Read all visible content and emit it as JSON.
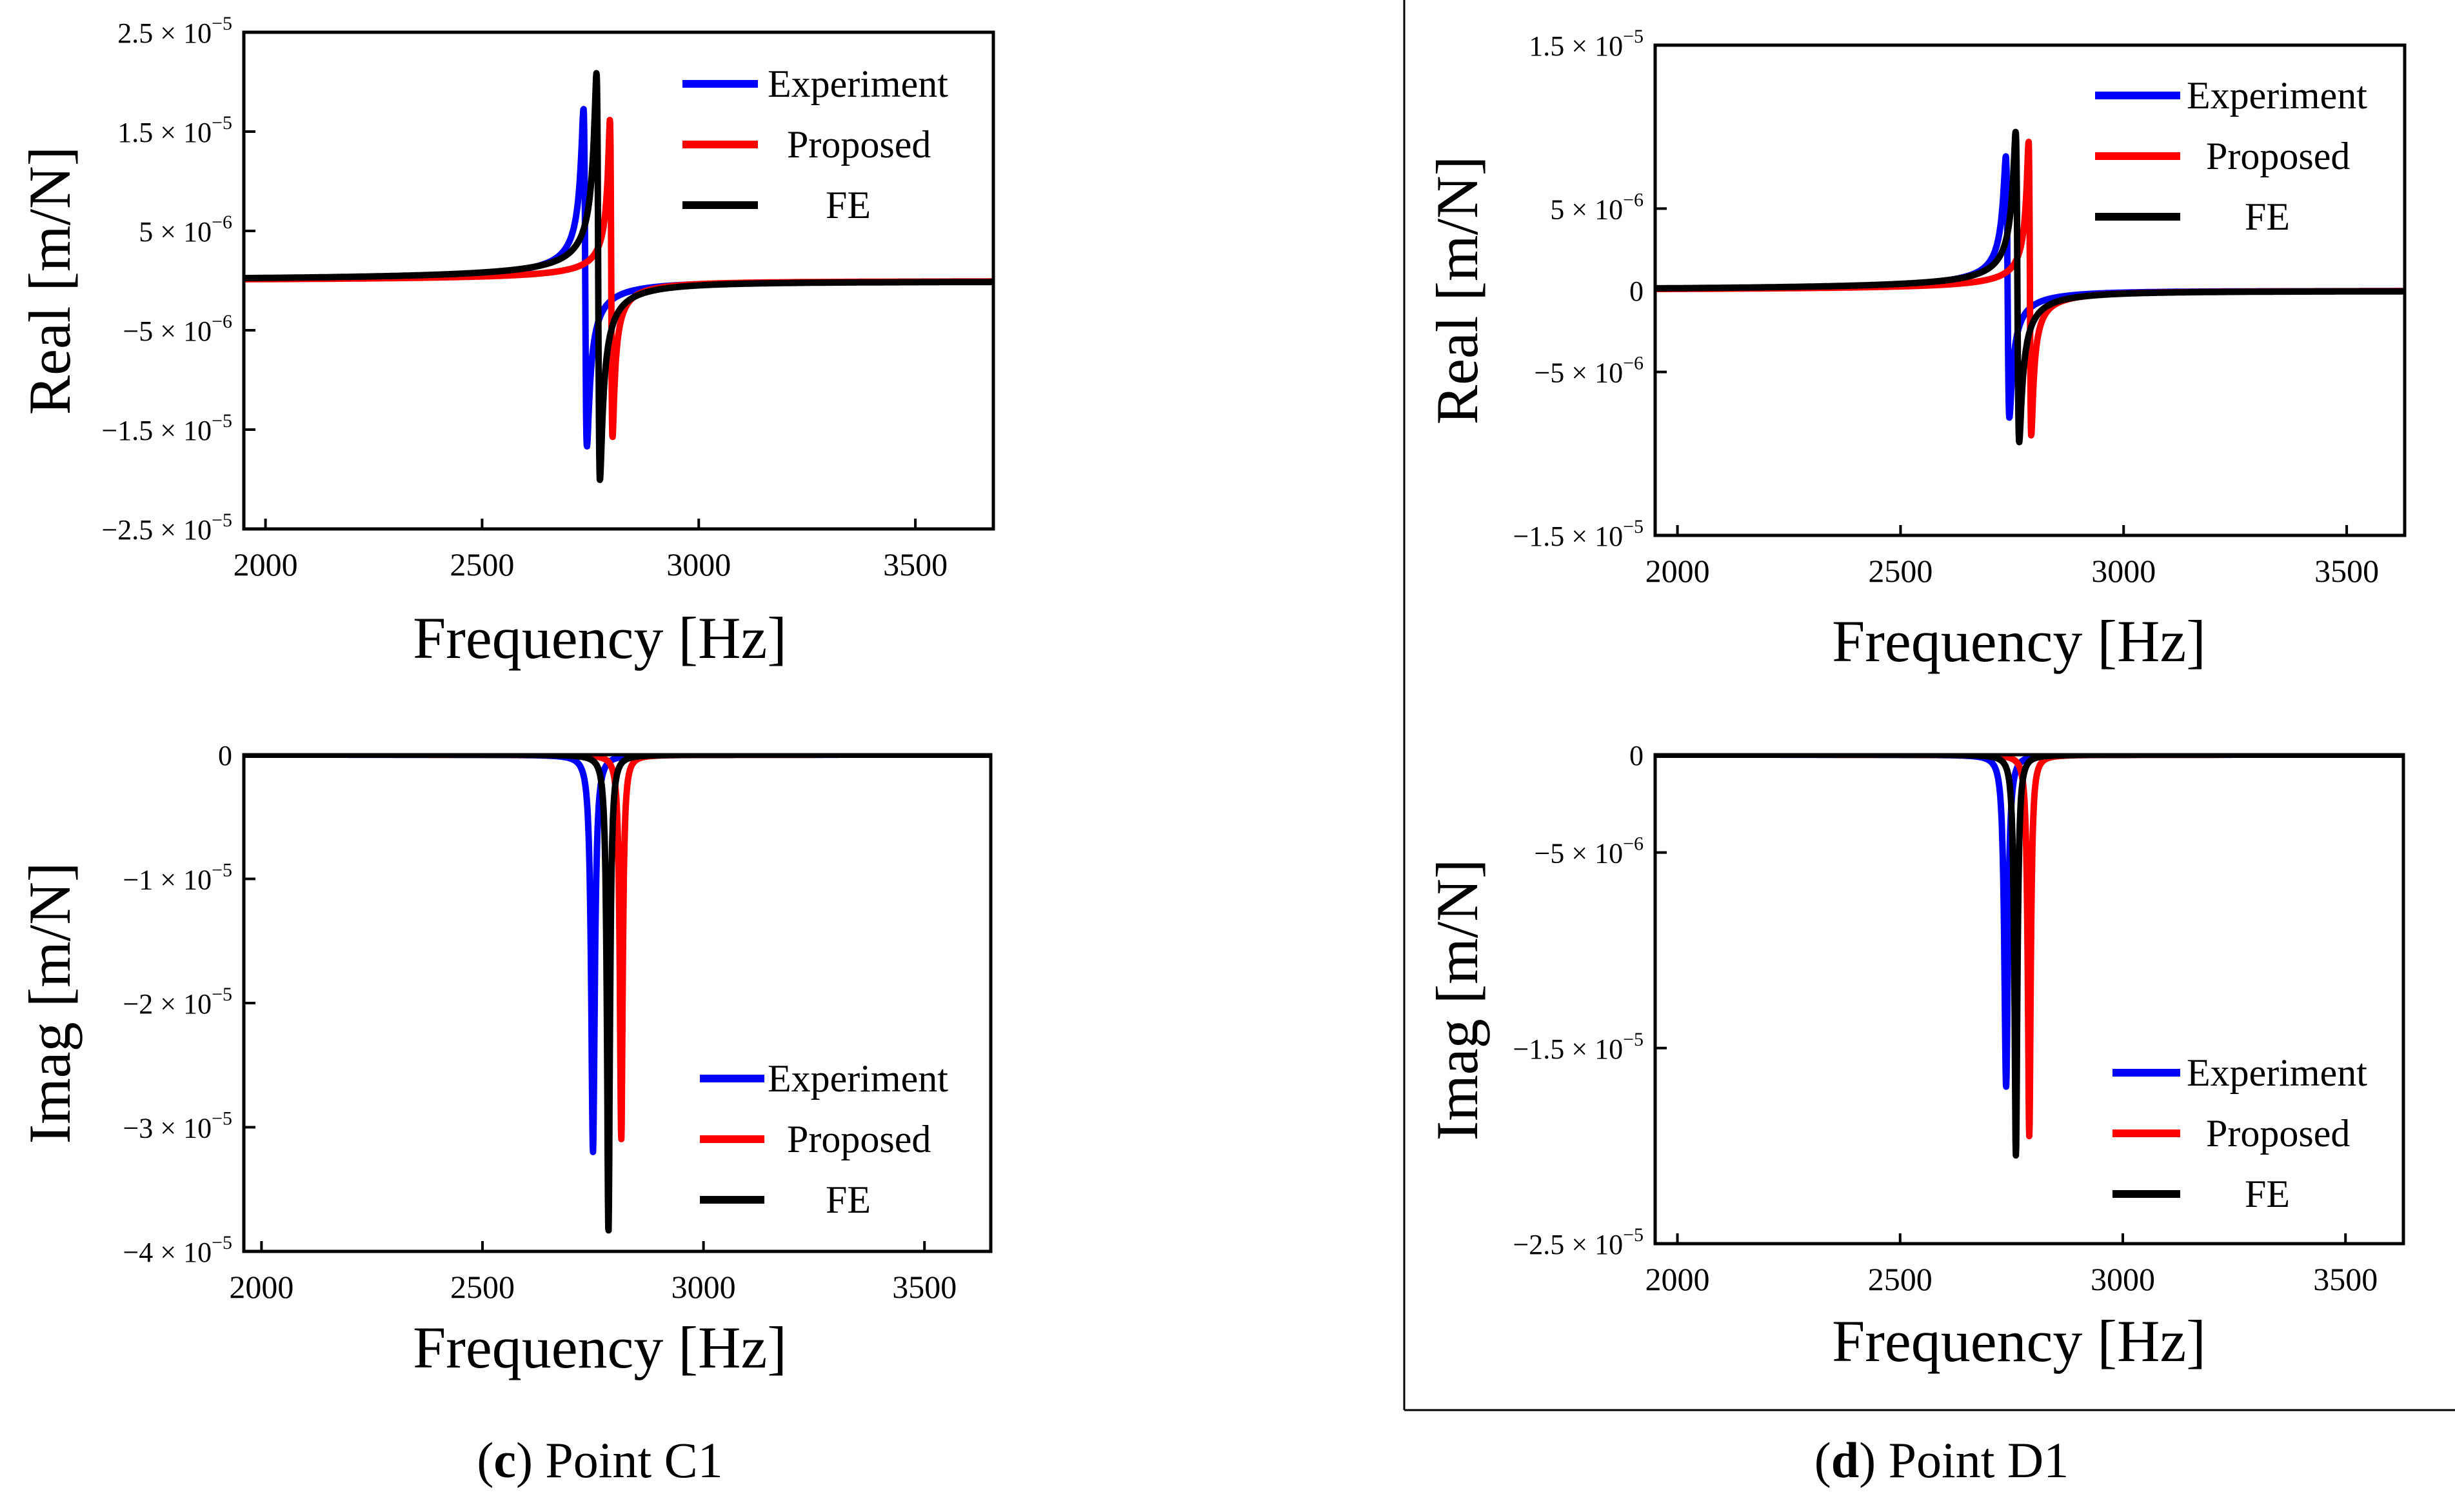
{
  "figure_captions": [
    {
      "letter": "c",
      "rest": ") Point C1",
      "open": "("
    },
    {
      "letter": "d",
      "rest": ") Point D1",
      "open": "("
    }
  ],
  "chart_data": [
    {
      "id": "c-real",
      "type": "line",
      "ylabel": "Real [m/N]",
      "xlabel": "Frequency [Hz]",
      "xlim": [
        1950,
        3680
      ],
      "ylim": [
        -2.5e-05,
        2.5e-05
      ],
      "xticks": [
        2000,
        2500,
        3000,
        3500
      ],
      "yticks": [
        {
          "value": 2.5e-05,
          "label": "2.5 × 10",
          "exp": "−5"
        },
        {
          "value": 1.5e-05,
          "label": "1.5 × 10",
          "exp": "−5"
        },
        {
          "value": 5e-06,
          "label": "5 × 10",
          "exp": "−6"
        },
        {
          "value": -5e-06,
          "label": "−5 × 10",
          "exp": "−6"
        },
        {
          "value": -1.5e-05,
          "label": "−1.5 × 10",
          "exp": "−5"
        },
        {
          "value": -2.5e-05,
          "label": "−2.5 × 10",
          "exp": "−5"
        }
      ],
      "legend": [
        "Experiment",
        "Proposed",
        "FE"
      ],
      "series": [
        {
          "name": "Experiment",
          "color": "#0000ff",
          "f0": 2738,
          "peak": 1.7e-05,
          "halfwidth": 4,
          "offset": 3e-07
        },
        {
          "name": "Proposed",
          "color": "#ff0000",
          "f0": 2798,
          "peak": 1.6e-05,
          "halfwidth": 3,
          "offset": 2e-07
        },
        {
          "name": "FE",
          "color": "#000000",
          "f0": 2768,
          "peak": 2.05e-05,
          "halfwidth": 4,
          "offset": 4e-07
        }
      ]
    },
    {
      "id": "d-real",
      "type": "line",
      "ylabel": "Real [m/N]",
      "xlabel": "Frequency [Hz]",
      "xlim": [
        1950,
        3630
      ],
      "ylim": [
        -1.5e-05,
        1.5e-05
      ],
      "xticks": [
        2000,
        2500,
        3000,
        3500
      ],
      "yticks": [
        {
          "value": 1.5e-05,
          "label": "1.5 × 10",
          "exp": "−5"
        },
        {
          "value": 5e-06,
          "label": "5 × 10",
          "exp": "−6"
        },
        {
          "value": 0,
          "label": "0",
          "exp": ""
        },
        {
          "value": -5e-06,
          "label": "−5 × 10",
          "exp": "−6"
        },
        {
          "value": -1.5e-05,
          "label": "−1.5 × 10",
          "exp": "−5"
        }
      ],
      "legend": [
        "Experiment",
        "Proposed",
        "FE"
      ],
      "series": [
        {
          "name": "Experiment",
          "color": "#0000ff",
          "f0": 2740,
          "peak": 8e-06,
          "halfwidth": 4,
          "offset": 2e-07
        },
        {
          "name": "Proposed",
          "color": "#ff0000",
          "f0": 2790,
          "peak": 9e-06,
          "halfwidth": 3,
          "offset": 1e-07
        },
        {
          "name": "FE",
          "color": "#000000",
          "f0": 2762,
          "peak": 9.5e-06,
          "halfwidth": 4,
          "offset": 2e-07
        }
      ]
    },
    {
      "id": "c-imag",
      "type": "line",
      "ylabel": "Imag [m/N]",
      "xlabel": "Frequency [Hz]",
      "xlim": [
        1960,
        3650
      ],
      "ylim": [
        -4e-05,
        0
      ],
      "xticks": [
        2000,
        2500,
        3000,
        3500
      ],
      "yticks": [
        {
          "value": 0,
          "label": "0",
          "exp": ""
        },
        {
          "value": -1e-05,
          "label": "−1 × 10",
          "exp": "−5"
        },
        {
          "value": -2e-05,
          "label": "−2 × 10",
          "exp": "−5"
        },
        {
          "value": -3e-05,
          "label": "−3 × 10",
          "exp": "−5"
        },
        {
          "value": -4e-05,
          "label": "−4 × 10",
          "exp": "−5"
        }
      ],
      "legend": [
        "Experiment",
        "Proposed",
        "FE"
      ],
      "series": [
        {
          "name": "Experiment",
          "color": "#0000ff",
          "f0": 2750,
          "peak": -3.2e-05,
          "halfwidth": 5
        },
        {
          "name": "Proposed",
          "color": "#ff0000",
          "f0": 2814,
          "peak": -3.1e-05,
          "halfwidth": 4
        },
        {
          "name": "FE",
          "color": "#000000",
          "f0": 2785,
          "peak": -3.85e-05,
          "halfwidth": 4
        }
      ]
    },
    {
      "id": "d-imag",
      "type": "line",
      "ylabel": "Imag [m/N]",
      "xlabel": "Frequency [Hz]",
      "xlim": [
        1950,
        3630
      ],
      "ylim": [
        -2.5e-05,
        0
      ],
      "xticks": [
        2000,
        2500,
        3000,
        3500
      ],
      "yticks": [
        {
          "value": 0,
          "label": "0",
          "exp": ""
        },
        {
          "value": -5e-06,
          "label": "−5 × 10",
          "exp": "−6"
        },
        {
          "value": -1.5e-05,
          "label": "−1.5 × 10",
          "exp": "−5"
        },
        {
          "value": -2.5e-05,
          "label": "−2.5 × 10",
          "exp": "−5"
        }
      ],
      "legend": [
        "Experiment",
        "Proposed",
        "FE"
      ],
      "series": [
        {
          "name": "Experiment",
          "color": "#0000ff",
          "f0": 2738,
          "peak": -1.7e-05,
          "halfwidth": 5
        },
        {
          "name": "Proposed",
          "color": "#ff0000",
          "f0": 2790,
          "peak": -1.95e-05,
          "halfwidth": 4
        },
        {
          "name": "FE",
          "color": "#000000",
          "f0": 2760,
          "peak": -2.05e-05,
          "halfwidth": 4
        }
      ]
    }
  ]
}
